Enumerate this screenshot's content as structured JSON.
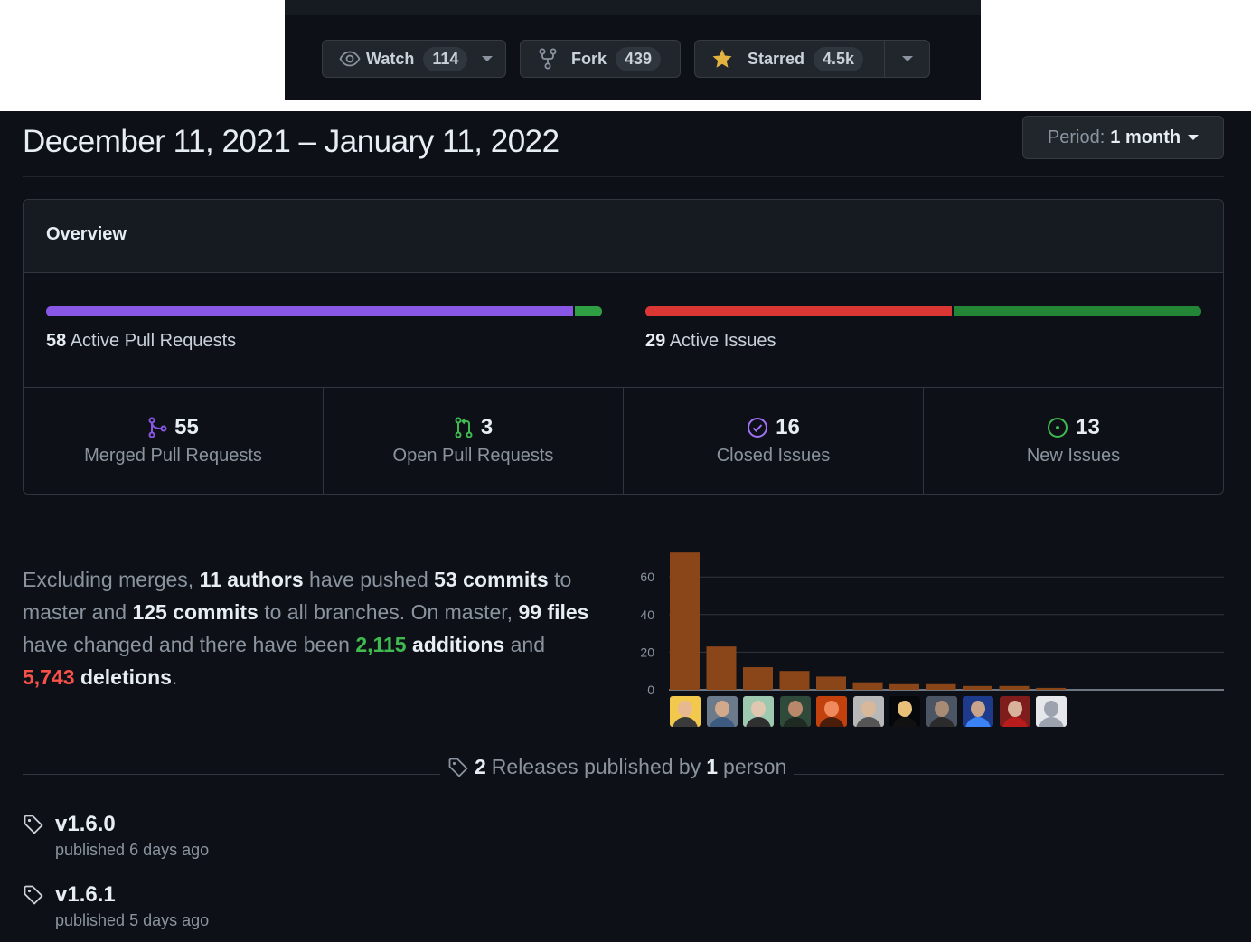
{
  "repo_actions": {
    "watch": {
      "label": "Watch",
      "count": "114"
    },
    "fork": {
      "label": "Fork",
      "count": "439"
    },
    "star": {
      "label": "Starred",
      "count": "4.5k"
    }
  },
  "header": {
    "date_range": "December 11, 2021 – January 11, 2022",
    "period_prefix": "Period:",
    "period_value": "1 month"
  },
  "overview": {
    "title": "Overview",
    "pull_requests": {
      "count": "58",
      "label": "Active Pull Requests",
      "merged": 55,
      "open": 3
    },
    "issues": {
      "count": "29",
      "label": "Active Issues",
      "closed": 16,
      "new": 13
    },
    "stats": [
      {
        "number": "55",
        "label": "Merged Pull Requests",
        "icon": "git-merge-icon"
      },
      {
        "number": "3",
        "label": "Open Pull Requests",
        "icon": "git-pull-request-icon"
      },
      {
        "number": "16",
        "label": "Closed Issues",
        "icon": "issue-closed-icon"
      },
      {
        "number": "13",
        "label": "New Issues",
        "icon": "issue-opened-icon"
      }
    ]
  },
  "summary": {
    "p1": "Excluding merges,",
    "authors": "11 authors",
    "p2": "have pushed",
    "commits_master": "53 commits",
    "p3": "to master and",
    "commits_all": "125 commits",
    "p4": "to all branches. On master,",
    "files": "99 files",
    "p5": "have changed and there have been",
    "additions_num": "2,115",
    "additions_word": "additions",
    "p6": "and",
    "deletions_num": "5,743",
    "deletions_word": "deletions",
    "p7": "."
  },
  "chart_data": {
    "type": "bar",
    "title": "",
    "xlabel": "",
    "ylabel": "",
    "categories": [
      "author 1",
      "author 2",
      "author 3",
      "author 4",
      "author 5",
      "author 6",
      "author 7",
      "author 8",
      "author 9",
      "author 10",
      "author 11"
    ],
    "values": [
      73,
      23,
      12,
      10,
      7,
      4,
      3,
      3,
      2,
      2,
      1
    ],
    "yticks": [
      0,
      20,
      40,
      60
    ],
    "ylim": [
      0,
      75
    ],
    "grid": true,
    "bar_color": "#8a4619"
  },
  "releases": {
    "count": "2",
    "text_mid": "Releases published by",
    "people": "1",
    "text_end": "person",
    "items": [
      {
        "name": "v1.6.0",
        "published": "published 6 days ago"
      },
      {
        "name": "v1.6.1",
        "published": "published 5 days ago"
      }
    ]
  },
  "colors": {
    "merged": "#8957e5",
    "open": "#2ea043",
    "closed_issue": "#da3633",
    "new_issue": "#238636",
    "star": "#e3b341"
  }
}
